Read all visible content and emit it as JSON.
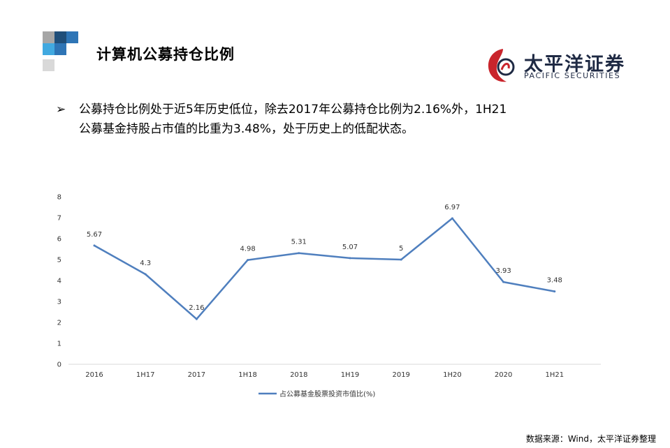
{
  "page": {
    "title": "计算机公募持仓比例"
  },
  "logo": {
    "cn": "太平洋证券",
    "en": "PACIFIC SECURITIES"
  },
  "bullet": {
    "marker": "➢",
    "line1": "公募持仓比例处于近5年历史低位，除去2017年公募持仓比例为2.16%外，1H21",
    "line2": "公募基金持股占市值的比重为3.48%，处于历史上的低配状态。"
  },
  "colors": {
    "line": "#4f7fbe",
    "accent_dark": "#1f4e79",
    "accent_blue": "#2e75b6",
    "accent_gray": "#a6a6a6"
  },
  "chart_data": {
    "type": "line",
    "categories": [
      "2016",
      "1H17",
      "2017",
      "1H18",
      "2018",
      "1H19",
      "2019",
      "1H20",
      "2020",
      "1H21"
    ],
    "series": [
      {
        "name": "占公募基金股票投资市值比(%)",
        "values": [
          5.67,
          4.3,
          2.16,
          4.98,
          5.31,
          5.07,
          5,
          6.97,
          3.93,
          3.48
        ]
      }
    ],
    "data_labels": [
      "5.67",
      "4.3",
      "2.16",
      "4.98",
      "5.31",
      "5.07",
      "5",
      "6.97",
      "3.93",
      "3.48"
    ],
    "yticks": [
      "0",
      "1",
      "2",
      "3",
      "4",
      "5",
      "6",
      "7",
      "8"
    ],
    "ylim": [
      0,
      8
    ],
    "grid": false,
    "legend_position": "bottom"
  },
  "source": "数据来源：Wind，太平洋证券整理"
}
